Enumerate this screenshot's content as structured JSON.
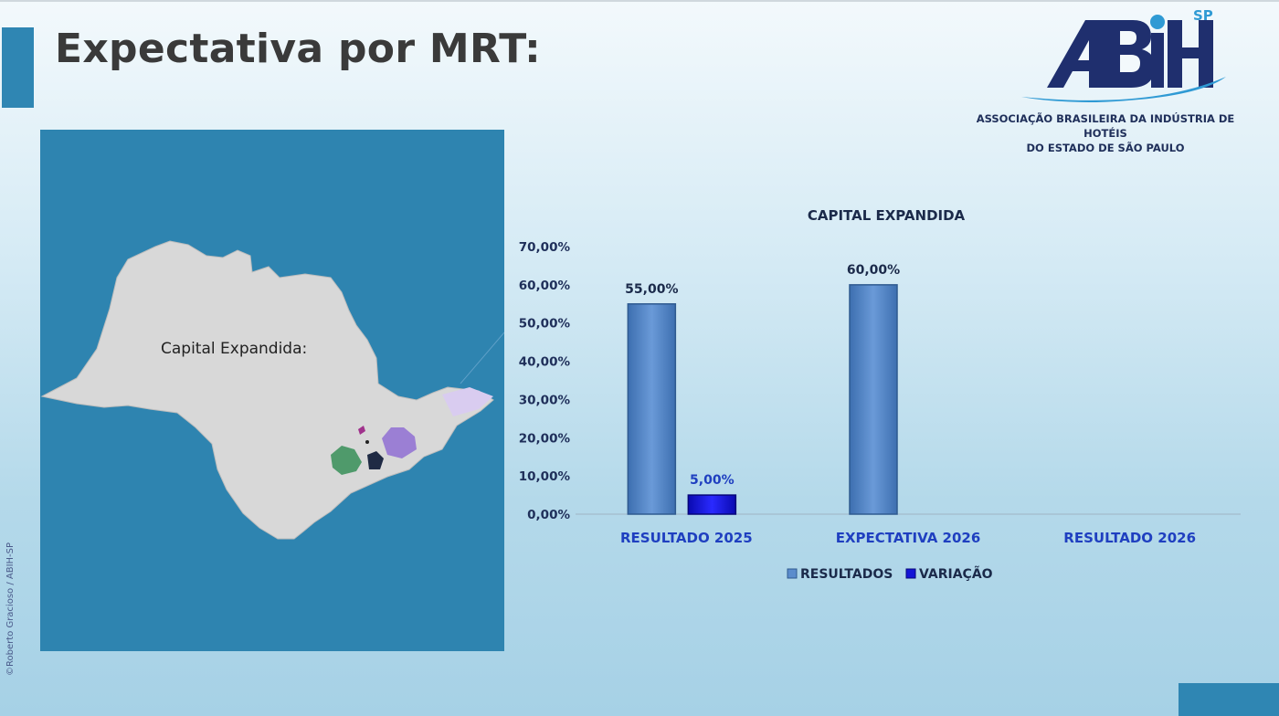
{
  "header": {
    "title": "Expectativa por MRT:"
  },
  "logo": {
    "mark": "ABIH",
    "region": "SP",
    "name_line1": "ASSOCIAÇÃO BRASILEIRA DA INDÚSTRIA DE HOTÉIS",
    "name_line2": "DO ESTADO DE SÃO PAULO"
  },
  "map": {
    "label": "Capital Expandida:"
  },
  "credit": "©Roberto Gracioso / ABIH-SP",
  "colors": {
    "accent": "#2f86b3",
    "bar_resultados": "#5b8ccc",
    "bar_variacao": "#1414d6",
    "label_resultados": "#1b2a4a",
    "label_variacao": "#1f3fc0"
  },
  "chart_data": {
    "type": "bar",
    "title": "CAPITAL EXPANDIDA",
    "categories": [
      "RESULTADO 2025",
      "EXPECTATIVA 2026",
      "RESULTADO 2026"
    ],
    "series": [
      {
        "name": "RESULTADOS",
        "values": [
          55,
          60,
          null
        ],
        "labels": [
          "55,00%",
          "60,00%",
          ""
        ]
      },
      {
        "name": "VARIAÇÃO",
        "values": [
          5,
          null,
          null
        ],
        "labels": [
          "5,00%",
          "",
          ""
        ]
      }
    ],
    "ylim": [
      0,
      70
    ],
    "yticks": [
      "0,00%",
      "10,00%",
      "20,00%",
      "30,00%",
      "40,00%",
      "50,00%",
      "60,00%",
      "70,00%"
    ],
    "legend": "bottom",
    "grid": false
  }
}
